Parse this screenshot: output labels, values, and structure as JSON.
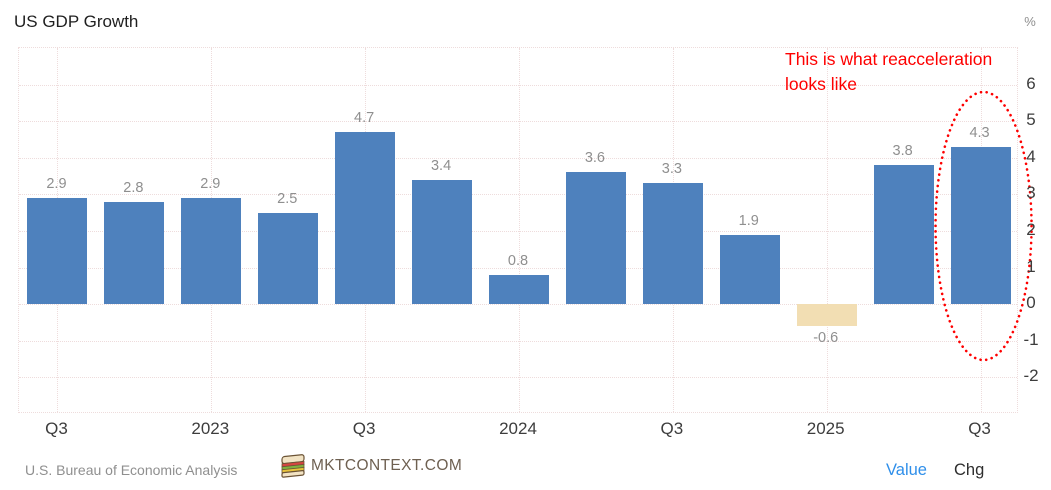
{
  "title": "US GDP Growth",
  "axis": {
    "unit_label": "%"
  },
  "annotation": {
    "line1": "This is what reacceleration",
    "line2": "looks like"
  },
  "footer": {
    "source": "U.S. Bureau of Economic Analysis",
    "brand": "MKTCONTEXT.COM",
    "value_label": "Value",
    "chg_label": "Chg"
  },
  "colors": {
    "title_text": "#1f1f1f",
    "tick_text": "#3d3d3d",
    "value_text": "#8f8f8f",
    "grid": "#eedcdc",
    "bar_positive": "#4e81bd",
    "bar_negative": "#f2deb3",
    "annotation": "#fe0000",
    "value_button": "#2f8fea",
    "chg_button": "#2e2e2e",
    "source_text": "#8f8f8f",
    "brand_text": "#6e6051"
  },
  "chart_data": {
    "type": "bar",
    "title": "US GDP Growth",
    "ylabel": "%",
    "ylim": [
      -3,
      7
    ],
    "grid": true,
    "values": [
      2.9,
      2.8,
      2.9,
      2.5,
      4.7,
      3.4,
      0.8,
      3.6,
      3.3,
      1.9,
      -0.6,
      3.8,
      4.3
    ],
    "bar_labels": [
      "2.9",
      "2.8",
      "2.9",
      "2.5",
      "4.7",
      "3.4",
      "0.8",
      "3.6",
      "3.3",
      "1.9",
      "-0.6",
      "3.8",
      "4.3"
    ],
    "x_ticks": [
      {
        "bar_index": 0,
        "label": "Q3"
      },
      {
        "bar_index": 2,
        "label": "2023"
      },
      {
        "bar_index": 4,
        "label": "Q3"
      },
      {
        "bar_index": 6,
        "label": "2024"
      },
      {
        "bar_index": 8,
        "label": "Q3"
      },
      {
        "bar_index": 10,
        "label": "2025"
      },
      {
        "bar_index": 12,
        "label": "Q3"
      }
    ],
    "y_ticks": [
      6,
      5,
      4,
      3,
      2,
      1,
      0,
      -1,
      -2
    ],
    "highlight_bar_index": 12,
    "legend_position": "none"
  }
}
